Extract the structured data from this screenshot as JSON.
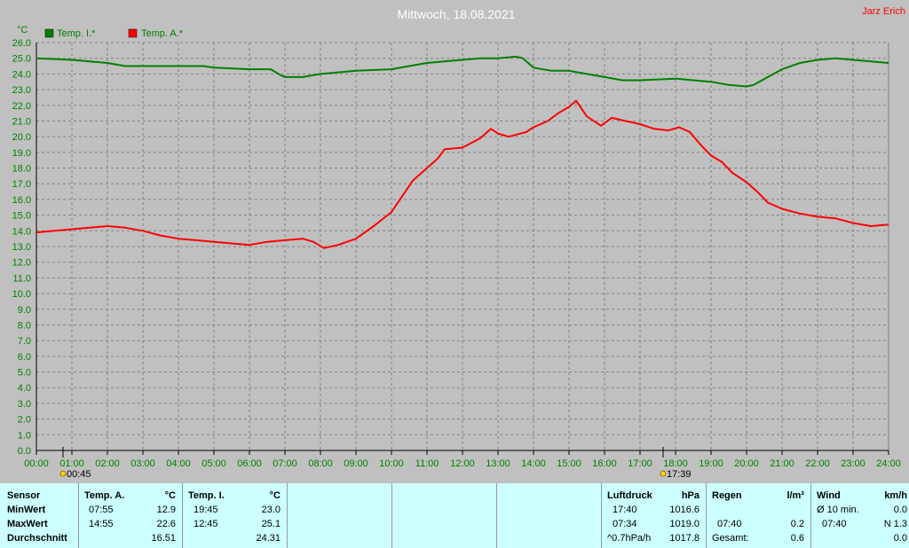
{
  "header": {
    "title": "Mittwoch, 18.08.2021",
    "author": "Jarz Erich",
    "unit": "°C"
  },
  "colors": {
    "background": "#c0c0c0",
    "plot_background": "#c0c0c0",
    "grid": "#808080",
    "title": "#ffffff",
    "author": "#ff0000",
    "temp_indoor": "#008000",
    "temp_outdoor": "#ff0000",
    "stats_background": "#ccffff"
  },
  "chart_data": {
    "type": "line",
    "title": "Mittwoch, 18.08.2021",
    "xlabel": "",
    "ylabel": "°C",
    "x_unit": "hour of day",
    "xlim": [
      0,
      24
    ],
    "ylim": [
      0,
      26
    ],
    "y_ticks": [
      "0.0",
      "1.0",
      "2.0",
      "3.0",
      "4.0",
      "5.0",
      "6.0",
      "7.0",
      "8.0",
      "9.0",
      "10.0",
      "11.0",
      "12.0",
      "13.0",
      "14.0",
      "15.0",
      "16.0",
      "17.0",
      "18.0",
      "19.0",
      "20.0",
      "21.0",
      "22.0",
      "23.0",
      "24.0",
      "25.0",
      "26.0"
    ],
    "x_ticks": [
      "00:00",
      "01:00",
      "02:00",
      "03:00",
      "04:00",
      "05:00",
      "06:00",
      "07:00",
      "08:00",
      "09:00",
      "10:00",
      "11:00",
      "12:00",
      "13:00",
      "14:00",
      "15:00",
      "16:00",
      "17:00",
      "18:00",
      "19:00",
      "20:00",
      "21:00",
      "22:00",
      "23:00",
      "24:00"
    ],
    "grid": true,
    "legend_position": "top-left",
    "annotations": [
      {
        "icon": "sunrise-icon",
        "x": 0.75,
        "label": "00:45"
      },
      {
        "icon": "sunset-icon",
        "x": 17.65,
        "label": "17:39"
      }
    ],
    "series": [
      {
        "name": "Temp. I.*",
        "color": "#008000",
        "points": [
          [
            0,
            25.0
          ],
          [
            1,
            24.9
          ],
          [
            2,
            24.7
          ],
          [
            2.5,
            24.5
          ],
          [
            3,
            24.5
          ],
          [
            4,
            24.5
          ],
          [
            4.7,
            24.5
          ],
          [
            5,
            24.4
          ],
          [
            6,
            24.3
          ],
          [
            6.6,
            24.3
          ],
          [
            6.9,
            23.9
          ],
          [
            7,
            23.8
          ],
          [
            7.5,
            23.8
          ],
          [
            8,
            24.0
          ],
          [
            9,
            24.2
          ],
          [
            10,
            24.3
          ],
          [
            10.5,
            24.5
          ],
          [
            11,
            24.7
          ],
          [
            12,
            24.9
          ],
          [
            12.5,
            25.0
          ],
          [
            13,
            25.0
          ],
          [
            13.5,
            25.1
          ],
          [
            13.7,
            25.0
          ],
          [
            14,
            24.4
          ],
          [
            14.5,
            24.2
          ],
          [
            15,
            24.2
          ],
          [
            15.5,
            24.0
          ],
          [
            16,
            23.8
          ],
          [
            16.5,
            23.6
          ],
          [
            17,
            23.6
          ],
          [
            18,
            23.7
          ],
          [
            18.5,
            23.6
          ],
          [
            19,
            23.5
          ],
          [
            19.5,
            23.3
          ],
          [
            20,
            23.2
          ],
          [
            20.2,
            23.3
          ],
          [
            20.6,
            23.8
          ],
          [
            21,
            24.3
          ],
          [
            21.5,
            24.7
          ],
          [
            22,
            24.9
          ],
          [
            22.5,
            25.0
          ],
          [
            23,
            24.9
          ],
          [
            24,
            24.7
          ]
        ]
      },
      {
        "name": "Temp. A.*",
        "color": "#ff0000",
        "points": [
          [
            0,
            13.9
          ],
          [
            0.5,
            14.0
          ],
          [
            1,
            14.1
          ],
          [
            1.5,
            14.2
          ],
          [
            2,
            14.3
          ],
          [
            2.5,
            14.2
          ],
          [
            3,
            14.0
          ],
          [
            3.5,
            13.7
          ],
          [
            4,
            13.5
          ],
          [
            4.5,
            13.4
          ],
          [
            5,
            13.3
          ],
          [
            5.5,
            13.2
          ],
          [
            6,
            13.1
          ],
          [
            6.5,
            13.3
          ],
          [
            7,
            13.4
          ],
          [
            7.5,
            13.5
          ],
          [
            7.8,
            13.3
          ],
          [
            8.1,
            12.9
          ],
          [
            8.5,
            13.1
          ],
          [
            9,
            13.5
          ],
          [
            9.5,
            14.3
          ],
          [
            10,
            15.2
          ],
          [
            10.3,
            16.2
          ],
          [
            10.6,
            17.2
          ],
          [
            11,
            18.0
          ],
          [
            11.3,
            18.6
          ],
          [
            11.5,
            19.2
          ],
          [
            12,
            19.3
          ],
          [
            12.5,
            19.9
          ],
          [
            12.8,
            20.5
          ],
          [
            13,
            20.2
          ],
          [
            13.3,
            20.0
          ],
          [
            13.8,
            20.3
          ],
          [
            14,
            20.6
          ],
          [
            14.4,
            21.0
          ],
          [
            14.7,
            21.5
          ],
          [
            15,
            21.9
          ],
          [
            15.2,
            22.3
          ],
          [
            15.5,
            21.3
          ],
          [
            15.9,
            20.7
          ],
          [
            16.2,
            21.2
          ],
          [
            16.6,
            21.0
          ],
          [
            17,
            20.8
          ],
          [
            17.4,
            20.5
          ],
          [
            17.8,
            20.4
          ],
          [
            18.1,
            20.6
          ],
          [
            18.4,
            20.3
          ],
          [
            18.7,
            19.5
          ],
          [
            19,
            18.8
          ],
          [
            19.3,
            18.4
          ],
          [
            19.6,
            17.7
          ],
          [
            20,
            17.1
          ],
          [
            20.3,
            16.5
          ],
          [
            20.6,
            15.8
          ],
          [
            21,
            15.4
          ],
          [
            21.5,
            15.1
          ],
          [
            22,
            14.9
          ],
          [
            22.5,
            14.8
          ],
          [
            23,
            14.5
          ],
          [
            23.5,
            14.3
          ],
          [
            24,
            14.4
          ]
        ]
      }
    ]
  },
  "stats": {
    "sensor": {
      "header": "Sensor",
      "rows": [
        "MinWert",
        "MaxWert",
        "Durchschnitt"
      ]
    },
    "temp_outdoor": {
      "header": "Temp. A.",
      "unit": "°C",
      "min": {
        "time": "07:55",
        "value": "12.9"
      },
      "max": {
        "time": "14:55",
        "value": "22.6"
      },
      "avg": "16.51"
    },
    "temp_indoor": {
      "header": "Temp. I.",
      "unit": "°C",
      "min": {
        "time": "19:45",
        "value": "23.0"
      },
      "max": {
        "time": "12:45",
        "value": "25.1"
      },
      "avg": "24.31"
    },
    "pressure": {
      "header": "Luftdruck",
      "unit": "hPa",
      "min": {
        "time": "17:40",
        "value": "1016.6"
      },
      "max": {
        "time": "07:34",
        "value": "1019.0"
      },
      "trend": {
        "label": "^0.7hPa/h",
        "value": "1017.8"
      }
    },
    "rain": {
      "header": "Regen",
      "unit": "l/m²",
      "row2": {
        "time": "07:40",
        "value": "0.2"
      },
      "total": {
        "label": "Gesamt:",
        "value": "0.6"
      }
    },
    "wind": {
      "header": "Wind",
      "unit": "km/h",
      "row1": {
        "label": "Ø 10 min.",
        "value": "0.0"
      },
      "row2": {
        "time": "07:40",
        "value": "N 1.3"
      },
      "row3": {
        "value": "0.0"
      }
    }
  }
}
